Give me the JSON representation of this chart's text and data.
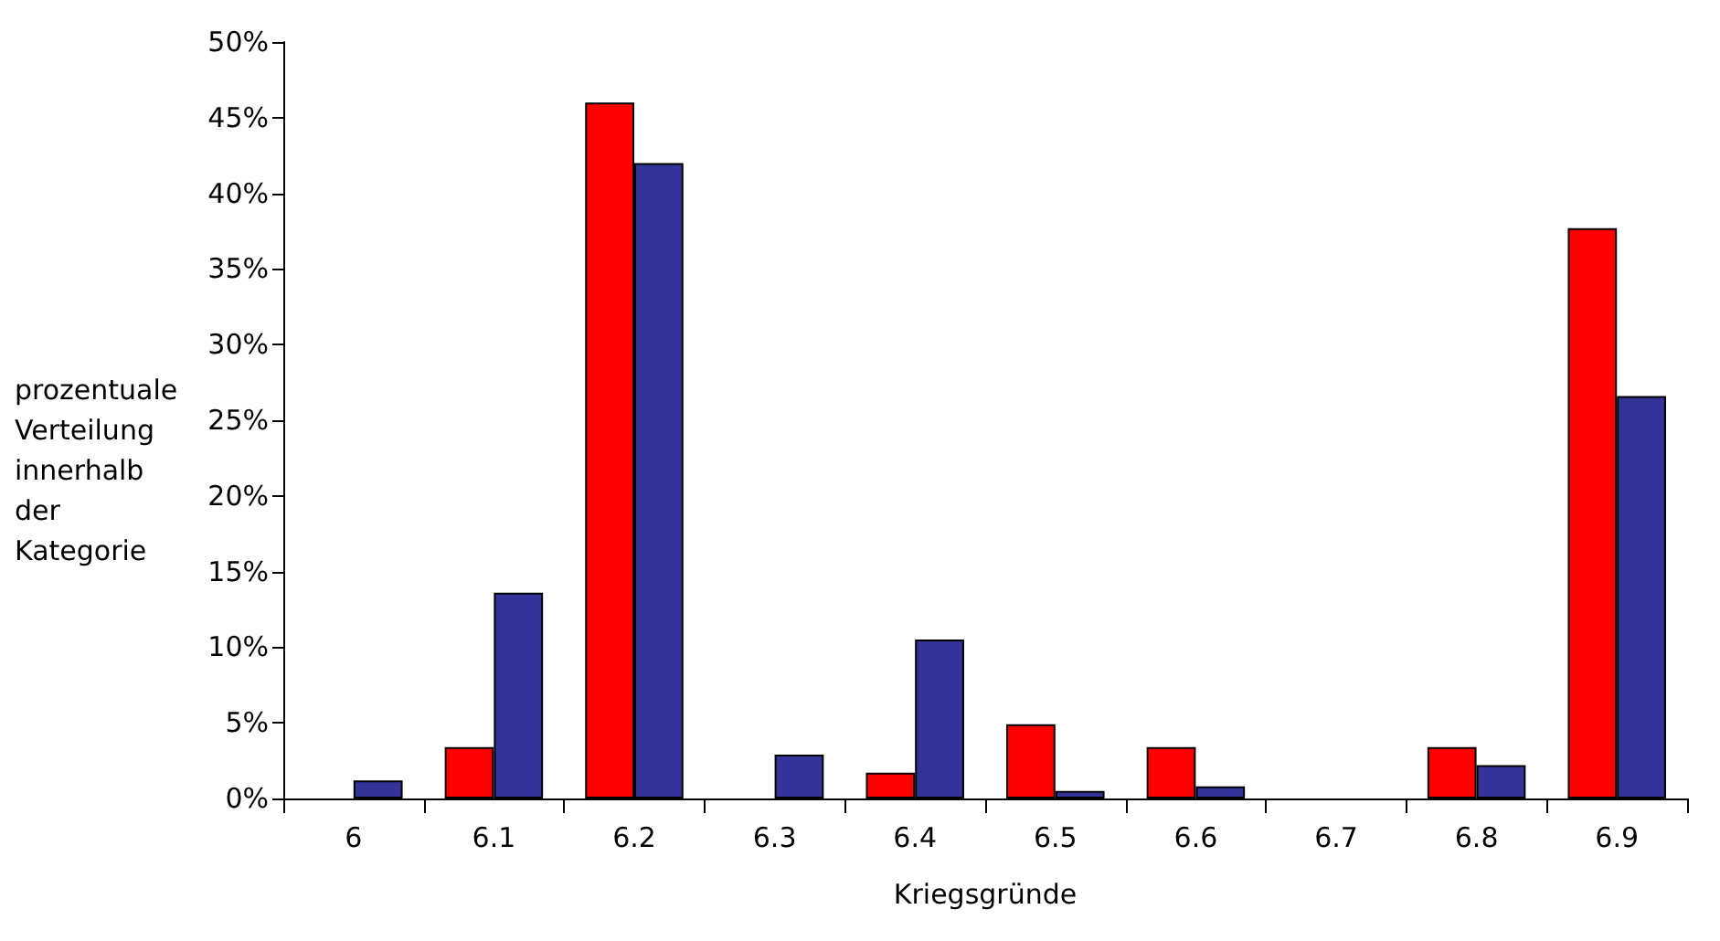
{
  "chart_data": {
    "type": "bar",
    "xlabel": "Kriegsgründe",
    "ylabel": "prozentuale Verteilung innerhalb der Kategorie",
    "categories": [
      "6",
      "6.1",
      "6.2",
      "6.3",
      "6.4",
      "6.5",
      "6.6",
      "6.7",
      "6.8",
      "6.9"
    ],
    "series": [
      {
        "color": "#ff0000",
        "values": [
          0,
          3.4,
          46,
          0,
          1.7,
          4.9,
          3.4,
          0,
          3.4,
          37.7
        ]
      },
      {
        "color": "#333399",
        "values": [
          1.2,
          13.6,
          42,
          2.9,
          10.5,
          0.5,
          0.8,
          0,
          2.2,
          26.6
        ]
      }
    ],
    "ylim": [
      0,
      50
    ],
    "yticks": [
      {
        "value": 0,
        "label": "0%"
      },
      {
        "value": 5,
        "label": "5%"
      },
      {
        "value": 10,
        "label": "10%"
      },
      {
        "value": 15,
        "label": "15%"
      },
      {
        "value": 20,
        "label": "20%"
      },
      {
        "value": 25,
        "label": "25%"
      },
      {
        "value": 30,
        "label": "30%"
      },
      {
        "value": 35,
        "label": "35%"
      },
      {
        "value": 40,
        "label": "40%"
      },
      {
        "value": 45,
        "label": "45%"
      },
      {
        "value": 50,
        "label": "50%"
      }
    ],
    "grid": false,
    "legend": false
  }
}
